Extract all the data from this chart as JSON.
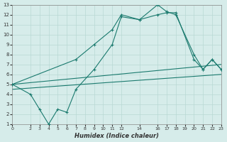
{
  "xlabel": "Humidex (Indice chaleur)",
  "background_color": "#d6ecea",
  "grid_color": "#b8d8d4",
  "line_color": "#1a7a6e",
  "xlim": [
    0,
    23
  ],
  "ylim": [
    1,
    13
  ],
  "xticks": [
    0,
    2,
    3,
    4,
    5,
    6,
    7,
    8,
    9,
    10,
    11,
    12,
    14,
    16,
    17,
    18,
    19,
    20,
    21,
    22,
    23
  ],
  "yticks": [
    1,
    2,
    3,
    4,
    5,
    6,
    7,
    8,
    9,
    10,
    11,
    12,
    13
  ],
  "line1_x": [
    0,
    2,
    3,
    4,
    5,
    6,
    7,
    9,
    11,
    12,
    14,
    16,
    17,
    18,
    20,
    21,
    22,
    23
  ],
  "line1_y": [
    5.0,
    4.0,
    2.5,
    1.0,
    2.5,
    2.2,
    4.5,
    6.5,
    9.0,
    11.8,
    11.5,
    13.0,
    12.3,
    12.0,
    8.0,
    6.5,
    7.5,
    6.5
  ],
  "line2_x": [
    0,
    7,
    9,
    11,
    12,
    14,
    16,
    17,
    18,
    20,
    21,
    22,
    23
  ],
  "line2_y": [
    5.0,
    7.5,
    9.0,
    10.5,
    12.0,
    11.5,
    12.0,
    12.2,
    12.2,
    7.5,
    6.5,
    7.5,
    6.5
  ],
  "line3_x": [
    0,
    23
  ],
  "line3_y": [
    5.0,
    7.0
  ],
  "line4_x": [
    0,
    23
  ],
  "line4_y": [
    4.5,
    6.0
  ]
}
